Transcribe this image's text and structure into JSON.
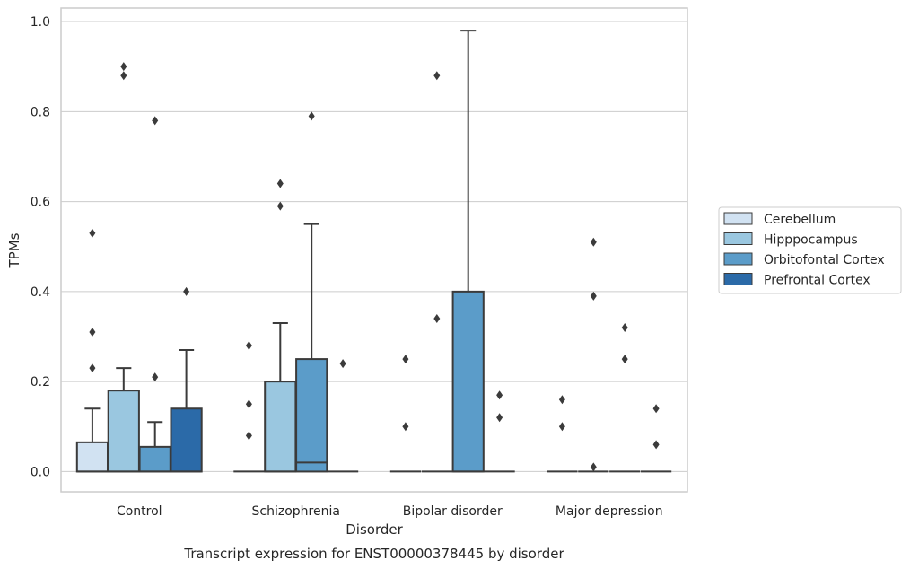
{
  "chart_data": {
    "type": "boxplot",
    "xlabel": "Disorder",
    "ylabel": "TPMs",
    "caption": "Transcript expression for ENST00000378445 by disorder",
    "ylim": [
      -0.045,
      1.03
    ],
    "yticks": [
      0.0,
      0.2,
      0.4,
      0.6,
      0.8,
      1.0
    ],
    "ytick_labels": [
      "0.0",
      "0.2",
      "0.4",
      "0.6",
      "0.8",
      "1.0"
    ],
    "grid": "horizontal",
    "legend_position": "right",
    "categories": [
      "Control",
      "Schizophrenia",
      "Bipolar disorder",
      "Major depression"
    ],
    "series": [
      {
        "name": "Cerebellum",
        "color": "#d1e2f2",
        "boxes": [
          {
            "q1": 0.0,
            "median": 0.0,
            "q3": 0.065,
            "whisker_low": 0.0,
            "whisker_high": 0.14,
            "outliers": [
              0.23,
              0.31,
              0.53
            ]
          },
          {
            "q1": 0.0,
            "median": 0.0,
            "q3": 0.0,
            "whisker_low": 0.0,
            "whisker_high": 0.0,
            "outliers": [
              0.08,
              0.15,
              0.28
            ]
          },
          {
            "q1": 0.0,
            "median": 0.0,
            "q3": 0.0,
            "whisker_low": 0.0,
            "whisker_high": 0.0,
            "outliers": [
              0.1,
              0.25
            ]
          },
          {
            "q1": 0.0,
            "median": 0.0,
            "q3": 0.0,
            "whisker_low": 0.0,
            "whisker_high": 0.0,
            "outliers": [
              0.1,
              0.16
            ]
          }
        ]
      },
      {
        "name": "Hipppocampus",
        "color": "#9ac7e0",
        "boxes": [
          {
            "q1": 0.0,
            "median": 0.0,
            "q3": 0.18,
            "whisker_low": 0.0,
            "whisker_high": 0.23,
            "outliers": [
              0.88,
              0.9
            ]
          },
          {
            "q1": 0.0,
            "median": 0.0,
            "q3": 0.2,
            "whisker_low": 0.0,
            "whisker_high": 0.33,
            "outliers": [
              0.59,
              0.64
            ]
          },
          {
            "q1": 0.0,
            "median": 0.0,
            "q3": 0.0,
            "whisker_low": 0.0,
            "whisker_high": 0.0,
            "outliers": [
              0.34,
              0.88
            ]
          },
          {
            "q1": 0.0,
            "median": 0.0,
            "q3": 0.0,
            "whisker_low": 0.0,
            "whisker_high": 0.0,
            "outliers": [
              0.01,
              0.39,
              0.51
            ]
          }
        ]
      },
      {
        "name": "Orbitofontal Cortex",
        "color": "#5b9cc9",
        "boxes": [
          {
            "q1": 0.0,
            "median": 0.0,
            "q3": 0.055,
            "whisker_low": 0.0,
            "whisker_high": 0.11,
            "outliers": [
              0.21,
              0.78
            ]
          },
          {
            "q1": 0.0,
            "median": 0.02,
            "q3": 0.25,
            "whisker_low": 0.0,
            "whisker_high": 0.55,
            "outliers": [
              0.79
            ]
          },
          {
            "q1": 0.0,
            "median": 0.0,
            "q3": 0.4,
            "whisker_low": 0.0,
            "whisker_high": 0.98,
            "outliers": []
          },
          {
            "q1": 0.0,
            "median": 0.0,
            "q3": 0.0,
            "whisker_low": 0.0,
            "whisker_high": 0.0,
            "outliers": [
              0.25,
              0.32
            ]
          }
        ]
      },
      {
        "name": "Prefrontal Cortex",
        "color": "#2b6aa8",
        "boxes": [
          {
            "q1": 0.0,
            "median": 0.0,
            "q3": 0.14,
            "whisker_low": 0.0,
            "whisker_high": 0.27,
            "outliers": [
              0.4
            ]
          },
          {
            "q1": 0.0,
            "median": 0.0,
            "q3": 0.0,
            "whisker_low": 0.0,
            "whisker_high": 0.0,
            "outliers": [
              0.24
            ]
          },
          {
            "q1": 0.0,
            "median": 0.0,
            "q3": 0.0,
            "whisker_low": 0.0,
            "whisker_high": 0.0,
            "outliers": [
              0.12,
              0.17
            ]
          },
          {
            "q1": 0.0,
            "median": 0.0,
            "q3": 0.0,
            "whisker_low": 0.0,
            "whisker_high": 0.0,
            "outliers": [
              0.06,
              0.14
            ]
          }
        ]
      }
    ],
    "colors": {
      "edge": "#3b3b3b",
      "grid": "#cccccc",
      "frame": "#cccccc",
      "outlier": "#3b3b3b"
    }
  }
}
